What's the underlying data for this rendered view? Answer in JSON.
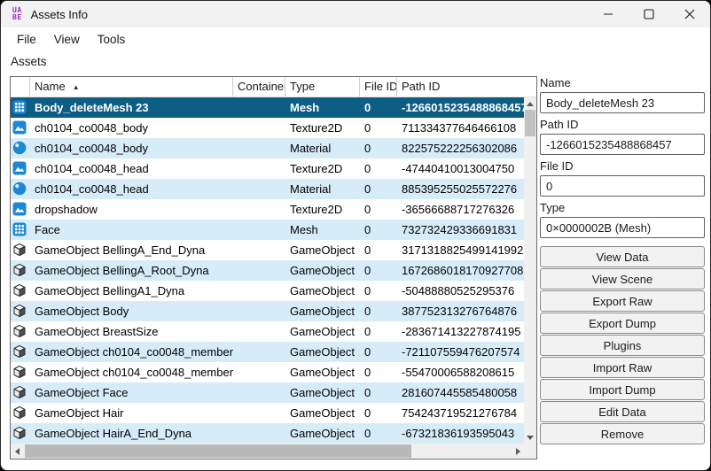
{
  "window": {
    "title": "Assets Info",
    "app_icon_line1": "UA",
    "app_icon_line2": "BE"
  },
  "menu": {
    "items": [
      "File",
      "View",
      "Tools"
    ]
  },
  "assets_label": "Assets",
  "table": {
    "columns": [
      "",
      "Name",
      "Container",
      "Type",
      "File ID",
      "Path ID"
    ],
    "sort_column": "Name",
    "sort_indicator": "▲",
    "rows": [
      {
        "icon": "mesh",
        "name": "Body_deleteMesh 23",
        "container": "",
        "type": "Mesh",
        "file_id": "0",
        "path_id": "-1266015235488868457",
        "selected": true
      },
      {
        "icon": "texture2d",
        "name": "ch0104_co0048_body",
        "container": "",
        "type": "Texture2D",
        "file_id": "0",
        "path_id": "711334377646466108"
      },
      {
        "icon": "material",
        "name": "ch0104_co0048_body",
        "container": "",
        "type": "Material",
        "file_id": "0",
        "path_id": "822575222256302086"
      },
      {
        "icon": "texture2d",
        "name": "ch0104_co0048_head",
        "container": "",
        "type": "Texture2D",
        "file_id": "0",
        "path_id": "-47440410013004750"
      },
      {
        "icon": "material",
        "name": "ch0104_co0048_head",
        "container": "",
        "type": "Material",
        "file_id": "0",
        "path_id": "885395255025572276"
      },
      {
        "icon": "texture2d",
        "name": "dropshadow",
        "container": "",
        "type": "Texture2D",
        "file_id": "0",
        "path_id": "-36566688717276326"
      },
      {
        "icon": "mesh",
        "name": "Face",
        "container": "",
        "type": "Mesh",
        "file_id": "0",
        "path_id": "732732429336691831"
      },
      {
        "icon": "gameobject",
        "name": "GameObject BellingA_End_Dyna",
        "container": "",
        "type": "GameObject",
        "file_id": "0",
        "path_id": "3171318825499141992"
      },
      {
        "icon": "gameobject",
        "name": "GameObject BellingA_Root_Dyna",
        "container": "",
        "type": "GameObject",
        "file_id": "0",
        "path_id": "1672686018170927708"
      },
      {
        "icon": "gameobject",
        "name": "GameObject BellingA1_Dyna",
        "container": "",
        "type": "GameObject",
        "file_id": "0",
        "path_id": "-50488880525295376"
      },
      {
        "icon": "gameobject",
        "name": "GameObject Body",
        "container": "",
        "type": "GameObject",
        "file_id": "0",
        "path_id": "387752313276764876"
      },
      {
        "icon": "gameobject",
        "name": "GameObject BreastSize",
        "container": "",
        "type": "GameObject",
        "file_id": "0",
        "path_id": "-283671413227874195"
      },
      {
        "icon": "gameobject",
        "name": "GameObject ch0104_co0048_member",
        "container": "",
        "type": "GameObject",
        "file_id": "0",
        "path_id": "-721107559476207574"
      },
      {
        "icon": "gameobject",
        "name": "GameObject ch0104_co0048_member",
        "container": "",
        "type": "GameObject",
        "file_id": "0",
        "path_id": "-55470006588208615"
      },
      {
        "icon": "gameobject",
        "name": "GameObject Face",
        "container": "",
        "type": "GameObject",
        "file_id": "0",
        "path_id": "281607445585480058"
      },
      {
        "icon": "gameobject",
        "name": "GameObject Hair",
        "container": "",
        "type": "GameObject",
        "file_id": "0",
        "path_id": "754243719521276784"
      },
      {
        "icon": "gameobject",
        "name": "GameObject HairA_End_Dyna",
        "container": "",
        "type": "GameObject",
        "file_id": "0",
        "path_id": "-67321836193595043"
      }
    ]
  },
  "details": {
    "name_label": "Name",
    "name_value": "Body_deleteMesh 23",
    "path_id_label": "Path ID",
    "path_id_value": "-1266015235488868457",
    "file_id_label": "File ID",
    "file_id_value": "0",
    "type_label": "Type",
    "type_value": "0×0000002B (Mesh)",
    "buttons": [
      "View Data",
      "View Scene",
      "Export Raw",
      "Export Dump",
      "Plugins",
      "Import Raw",
      "Import Dump",
      "Edit Data",
      "Remove"
    ]
  },
  "colors": {
    "selected_row_bg": "#0e5e84",
    "alt_row_bg": "#d7ecf9",
    "icon_blue": "#1c87d2",
    "app_icon_purple": "#9c20dc"
  }
}
